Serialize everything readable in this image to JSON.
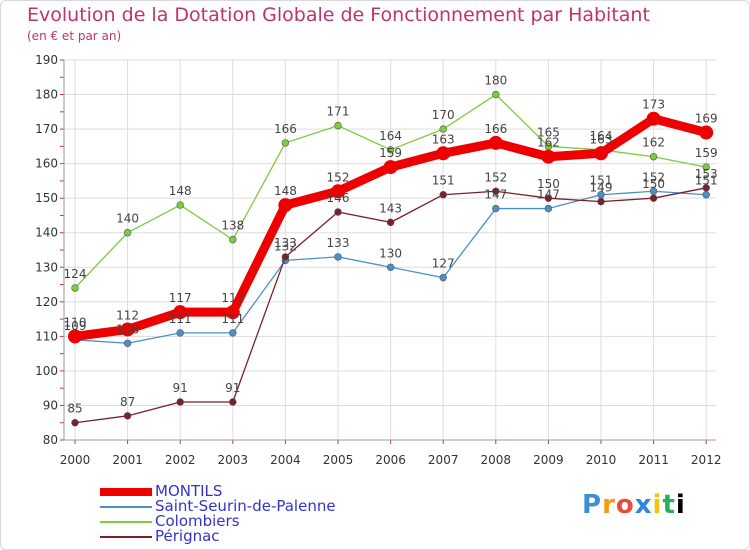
{
  "header": {
    "title": "Evolution de la Dotation Globale de Fonctionnement par Habitant",
    "subtitle": "(en € et par an)"
  },
  "logo": {
    "text": "Proxiti",
    "letters": [
      "P",
      "r",
      "o",
      "x",
      "i",
      "t",
      "i"
    ]
  },
  "chart_data": {
    "type": "line",
    "title": "Evolution de la Dotation Globale de Fonctionnement par Habitant",
    "ylabel": "(en € et par an)",
    "xlabel": "",
    "ylim": [
      80,
      190
    ],
    "yticks": [
      80,
      90,
      100,
      110,
      120,
      130,
      140,
      150,
      160,
      170,
      180,
      190
    ],
    "categories": [
      "2000",
      "2001",
      "2002",
      "2003",
      "2004",
      "2005",
      "2006",
      "2007",
      "2008",
      "2009",
      "2010",
      "2011",
      "2012"
    ],
    "grid": true,
    "legend_position": "bottom-left",
    "series": [
      {
        "name": "MONTILS",
        "color": "#ee0000",
        "text_color": "#3333cc",
        "width": "thick",
        "values": [
          110,
          112,
          117,
          117,
          148,
          152,
          159,
          163,
          166,
          162,
          163,
          173,
          169
        ]
      },
      {
        "name": "Saint-Seurin-de-Palenne",
        "color": "#4a90c8",
        "text_color": "#3333cc",
        "width": "thin",
        "values": [
          109,
          108,
          111,
          111,
          132,
          133,
          130,
          127,
          147,
          147,
          151,
          152,
          151
        ]
      },
      {
        "name": "Colombiers",
        "color": "#7ccc3c",
        "text_color": "#3333cc",
        "width": "thin",
        "values": [
          124,
          140,
          148,
          138,
          166,
          171,
          164,
          170,
          180,
          165,
          164,
          162,
          159
        ]
      },
      {
        "name": "Pérignac",
        "color": "#7a1f2b",
        "text_color": "#3333cc",
        "width": "thin",
        "values": [
          85,
          87,
          91,
          91,
          133,
          146,
          143,
          151,
          152,
          150,
          149,
          150,
          153
        ]
      }
    ]
  }
}
